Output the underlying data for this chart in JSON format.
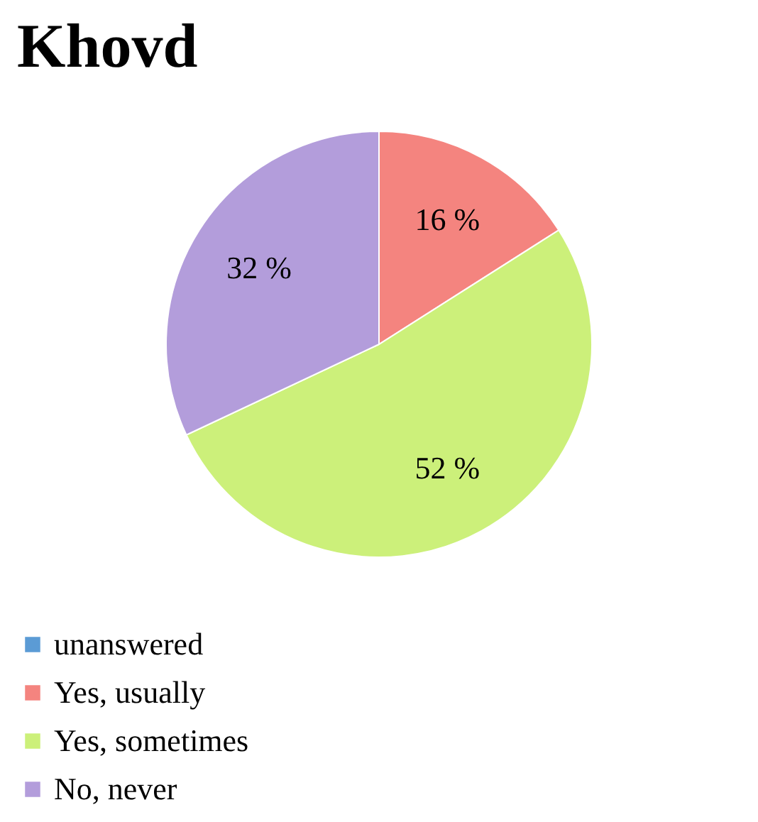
{
  "chart_data": {
    "type": "pie",
    "title": "Khovd",
    "categories": [
      "unanswered",
      "Yes, usually",
      "Yes, sometimes",
      "No, never"
    ],
    "values": [
      0,
      16,
      52,
      32
    ],
    "colors": [
      "#5b9bd5",
      "#f4847f",
      "#ccf07a",
      "#b39ddb"
    ],
    "value_labels": [
      null,
      "16 %",
      "52 %",
      "32 %"
    ],
    "legend": "bottom"
  }
}
